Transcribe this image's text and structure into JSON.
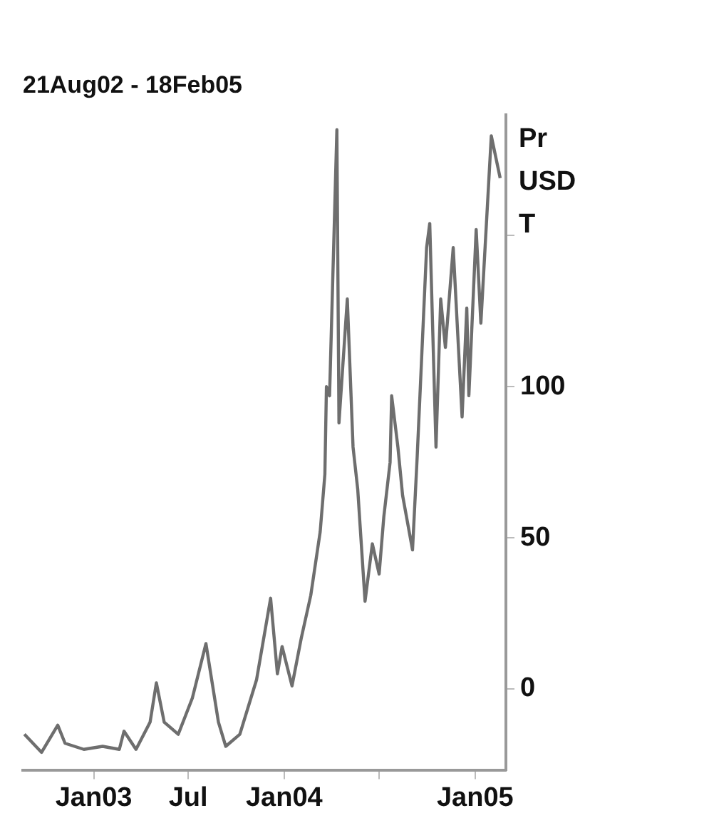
{
  "chart_data": {
    "type": "line",
    "title": "21Aug02 - 18Feb05",
    "ylabel": "Pr USD T",
    "x": [
      "2002-08-21",
      "2002-09-23",
      "2002-10-24",
      "2002-11-07",
      "2002-12-13",
      "2003-01-18",
      "2003-02-19",
      "2003-02-28",
      "2003-03-23",
      "2003-04-19",
      "2003-05-01",
      "2003-05-16",
      "2003-06-12",
      "2003-07-09",
      "2003-08-04",
      "2003-08-28",
      "2003-09-11",
      "2003-10-08",
      "2003-11-09",
      "2003-12-06",
      "2003-12-19",
      "2003-12-28",
      "2004-01-16",
      "2004-02-03",
      "2004-02-21",
      "2004-03-10",
      "2004-03-19",
      "2004-03-22",
      "2004-03-28",
      "2004-04-11",
      "2004-04-15",
      "2004-05-01",
      "2004-05-12",
      "2004-05-21",
      "2004-06-04",
      "2004-06-18",
      "2004-07-01",
      "2004-07-10",
      "2004-07-22",
      "2004-07-25",
      "2004-08-06",
      "2004-08-15",
      "2004-09-03",
      "2004-09-12",
      "2004-09-30",
      "2004-10-06",
      "2004-10-18",
      "2004-10-27",
      "2004-11-05",
      "2004-11-20",
      "2004-12-07",
      "2004-12-16",
      "2004-12-20",
      "2005-01-03",
      "2005-01-12",
      "2005-02-01",
      "2005-02-18"
    ],
    "series": [
      {
        "color": "#6e6e6e",
        "values": [
          -15,
          -21,
          -12,
          -18,
          -20,
          -19,
          -20,
          -14,
          -20,
          -11,
          2,
          -11,
          -15,
          -3,
          15,
          -11,
          -19,
          -15,
          3,
          30,
          5,
          14,
          1,
          17,
          31,
          52,
          71,
          100,
          97,
          185,
          88,
          129,
          80,
          66,
          29,
          48,
          38,
          57,
          75,
          97,
          80,
          64,
          46,
          77,
          146,
          154,
          80,
          129,
          113,
          146,
          90,
          126,
          97,
          152,
          121,
          183,
          169
        ]
      }
    ],
    "xlim": [
      "2002-08-18",
      "2005-03-01"
    ],
    "xticks": [
      {
        "value": "2003-01-01",
        "label": "Jan03"
      },
      {
        "value": "2003-07-01",
        "label": "Jul"
      },
      {
        "value": "2004-01-01",
        "label": "Jan04"
      },
      {
        "value": "2004-07-01",
        "label": null
      },
      {
        "value": "2005-01-01",
        "label": "Jan05"
      }
    ],
    "ylim": [
      -27,
      190
    ],
    "yticks": [
      0,
      50,
      100,
      {
        "value": 150,
        "label": null
      }
    ],
    "grid": false,
    "legend": false,
    "marker": "none",
    "line_style": "solid"
  }
}
